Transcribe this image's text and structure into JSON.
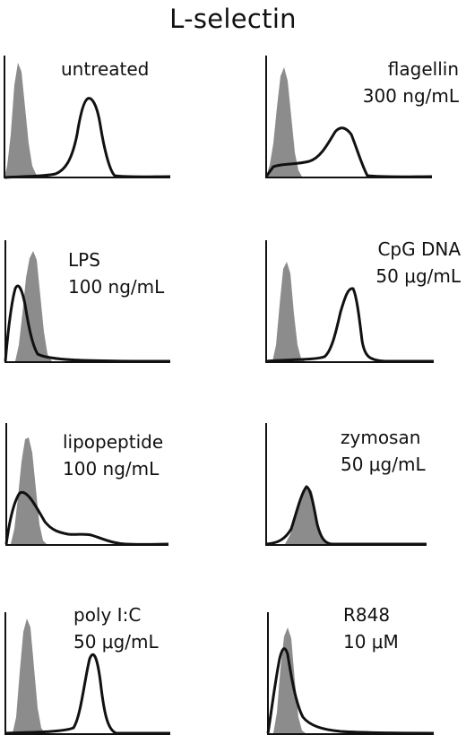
{
  "title": "L-selectin",
  "panels": [
    {
      "label": "untreated",
      "dose": ""
    },
    {
      "label": "flagellin",
      "dose": "300 ng/mL"
    },
    {
      "label": "LPS",
      "dose": "100 ng/mL"
    },
    {
      "label": "CpG DNA",
      "dose": "50 μg/mL"
    },
    {
      "label": "lipopeptide",
      "dose": "100 ng/mL"
    },
    {
      "label": "zymosan",
      "dose": "50 μg/mL"
    },
    {
      "label": "poly I:C",
      "dose": "50 μg/mL"
    },
    {
      "label": "R848",
      "dose": "10 μM"
    }
  ],
  "colors": {
    "control_fill": "#8c8c8c",
    "treated_line": "#111111",
    "axis": "#111111"
  }
}
